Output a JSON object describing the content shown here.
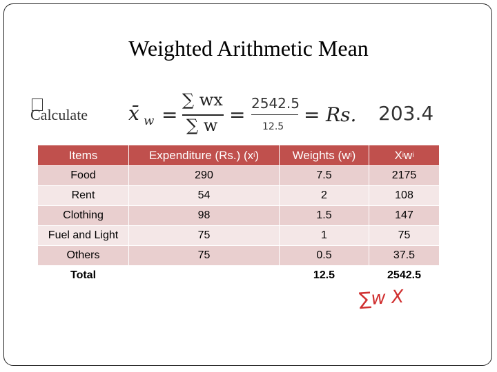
{
  "title": "Weighted Arithmetic Mean",
  "bullet": "Calculate",
  "formula": {
    "symbol": "x̄",
    "symbol_sub": "w",
    "num": "∑ wx",
    "den": "∑ w",
    "num2": "2542.5",
    "den2": "12.5",
    "currency": "Rs.",
    "result": "203.4"
  },
  "table": {
    "header": [
      [
        "Items"
      ],
      [
        "Expenditure (Rs.) (x",
        {
          "text": "i",
          "sub": true
        },
        ")"
      ],
      [
        "Weights (w",
        {
          "text": "i",
          "sub": true
        },
        ")"
      ],
      [
        "X",
        {
          "text": "i",
          "sub": true
        },
        " w",
        {
          "text": "i",
          "sub": true
        }
      ]
    ],
    "rows": [
      [
        "Food",
        290,
        7.5,
        2175
      ],
      [
        "Rent",
        54,
        2,
        108
      ],
      [
        "Clothing",
        98,
        1.5,
        147
      ],
      [
        "Fuel and Light",
        75,
        1,
        75
      ],
      [
        "Others",
        75,
        0.5,
        37.5
      ],
      [
        "Total",
        null,
        12.5,
        2542.5
      ]
    ]
  },
  "annotation": "∑w X"
}
